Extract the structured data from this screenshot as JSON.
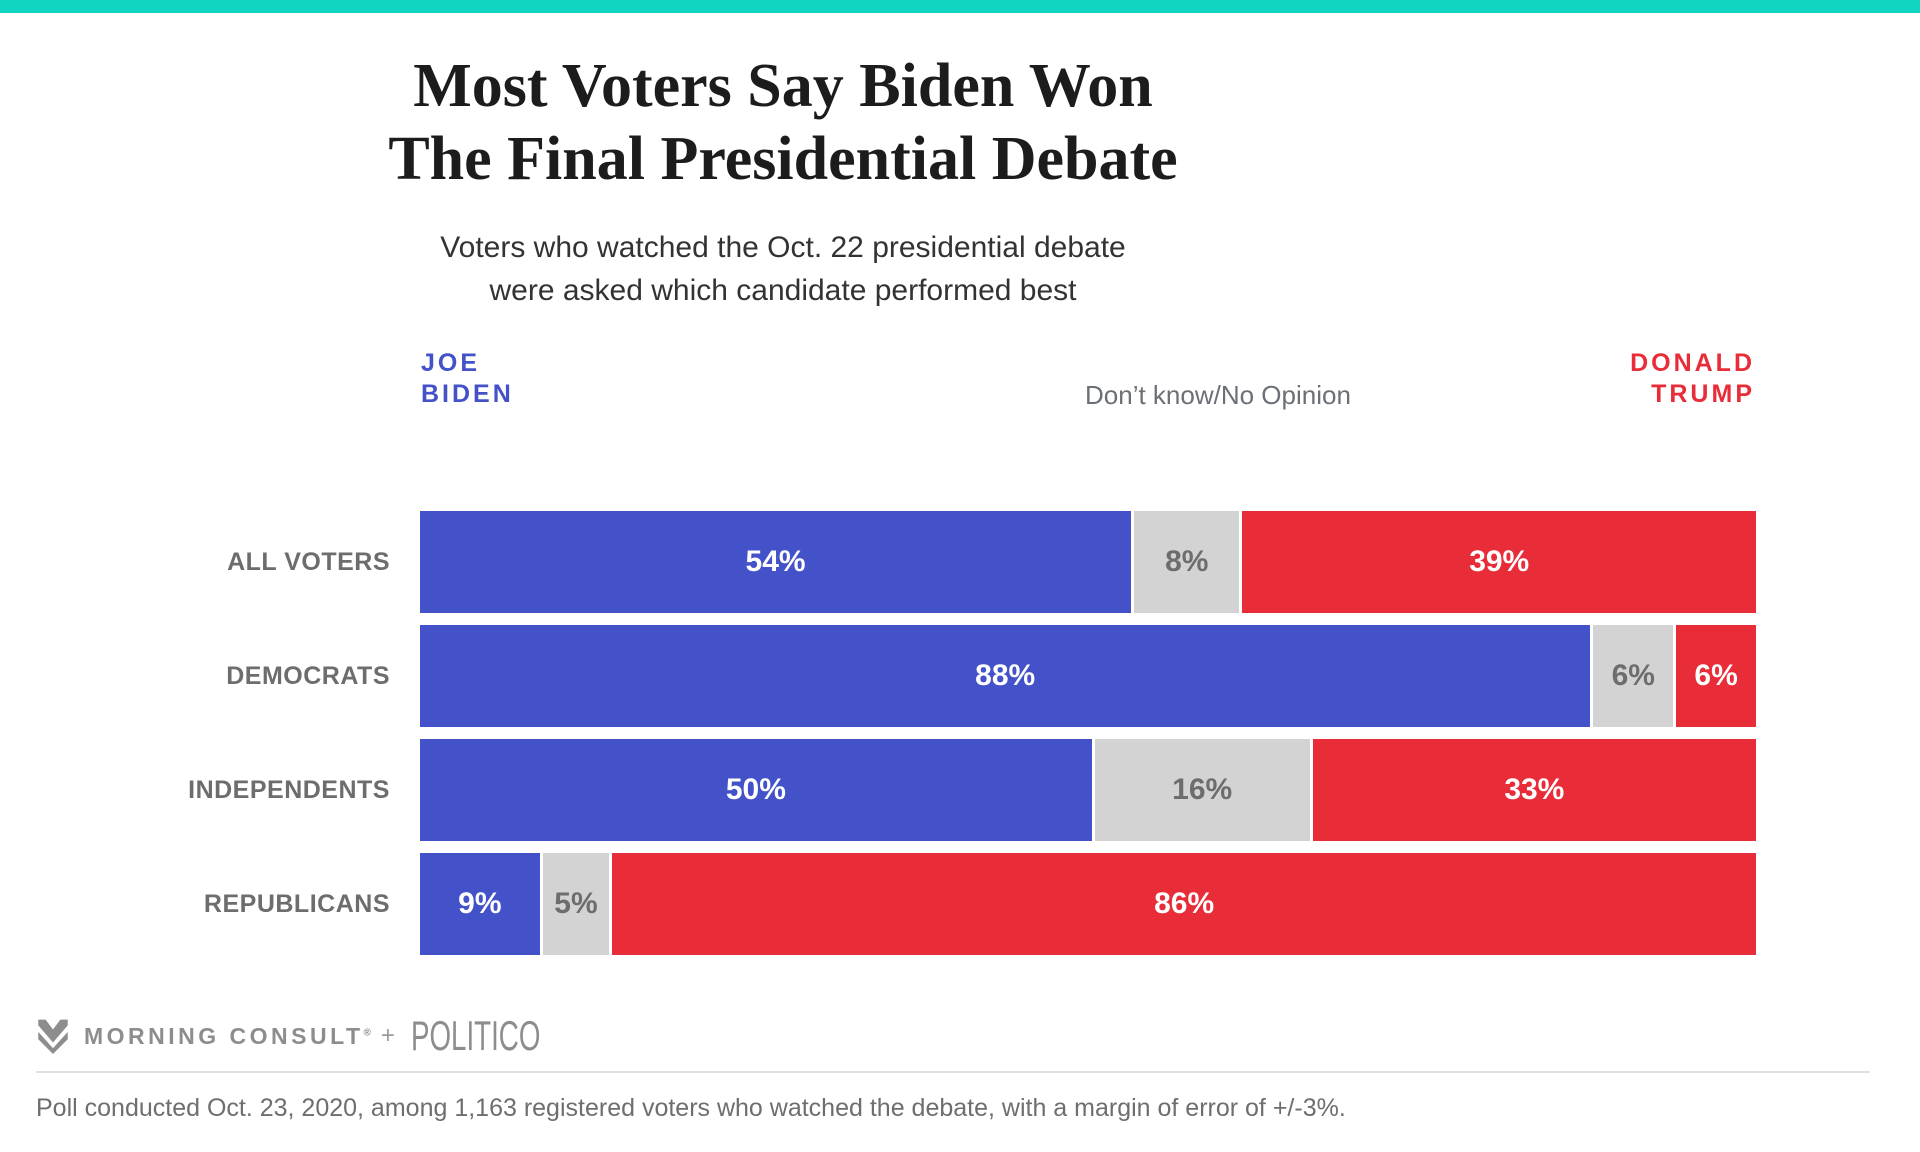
{
  "page": {
    "background": "#ffffff",
    "accent_bar_color": "#12d4c3"
  },
  "header": {
    "title_line1": "Most Voters Say Biden Won",
    "title_line2": "The Final Presidential Debate",
    "subtitle_line1": "Voters who watched the Oct. 22 presidential debate",
    "subtitle_line2": "were asked which candidate performed best"
  },
  "legend": {
    "biden_label_line1": "JOE",
    "biden_label_line2": "BIDEN",
    "biden_color": "#4352c8",
    "neutral_label": "Don’t know/No Opinion",
    "neutral_color": "#d3d3d3",
    "trump_label_line1": "DONALD",
    "trump_label_line2": "TRUMP",
    "trump_color": "#e82c38"
  },
  "chart_data": {
    "type": "bar",
    "variant": "horizontal-stacked",
    "unit": "percent",
    "xlim": [
      0,
      100
    ],
    "grid": false,
    "legend_position": "top",
    "bar_labels_inside": true,
    "categories": [
      "ALL VOTERS",
      "DEMOCRATS",
      "INDEPENDENTS",
      "REPUBLICANS"
    ],
    "series": [
      {
        "name": "Joe Biden",
        "color": "#4352c8",
        "text_color": "#ffffff",
        "values": [
          54,
          88,
          50,
          9
        ]
      },
      {
        "name": "Don’t know/No Opinion",
        "color": "#d3d3d3",
        "text_color": "#6d6d6d",
        "values": [
          8,
          6,
          16,
          5
        ]
      },
      {
        "name": "Donald Trump",
        "color": "#e82c38",
        "text_color": "#ffffff",
        "values": [
          39,
          6,
          33,
          86
        ]
      }
    ]
  },
  "footer": {
    "brand1": "MORNING CONSULT",
    "brand1_registered": "®",
    "separator": "+",
    "brand2": "POLITICO",
    "caption": "Poll conducted Oct. 23, 2020, among 1,163 registered voters who watched the debate, with a margin of error of +/-3%."
  }
}
